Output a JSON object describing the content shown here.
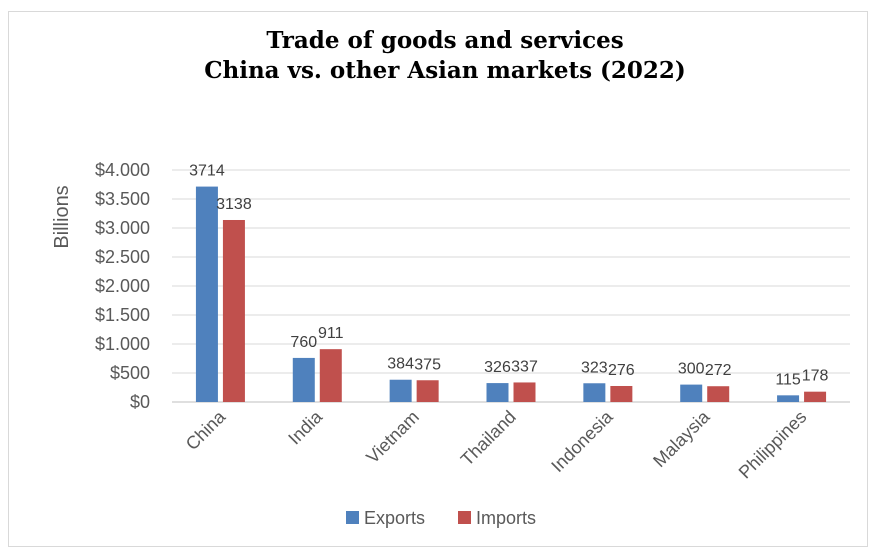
{
  "chart_data": {
    "type": "bar",
    "title_line1": "Trade of goods and services",
    "title_line2": "China vs. other Asian markets (2022)",
    "ylabel": "Billions",
    "xlabel": "",
    "ylim": [
      0,
      4000
    ],
    "yticks": [
      0,
      500,
      1000,
      1500,
      2000,
      2500,
      3000,
      3500,
      4000
    ],
    "ytick_labels": [
      "$0",
      "$500",
      "$1.000",
      "$1.500",
      "$2.000",
      "$2.500",
      "$3.000",
      "$3.500",
      "$4.000"
    ],
    "categories": [
      "China",
      "India",
      "Vietnam",
      "Thailand",
      "Indonesia",
      "Malaysia",
      "Philippines"
    ],
    "series": [
      {
        "name": "Exports",
        "color": "#4f81bd",
        "values": [
          3714,
          760,
          384,
          326,
          323,
          300,
          115
        ]
      },
      {
        "name": "Imports",
        "color": "#c0504d",
        "values": [
          3138,
          911,
          375,
          337,
          276,
          272,
          178
        ]
      }
    ],
    "grid": true,
    "legend_position": "bottom"
  }
}
